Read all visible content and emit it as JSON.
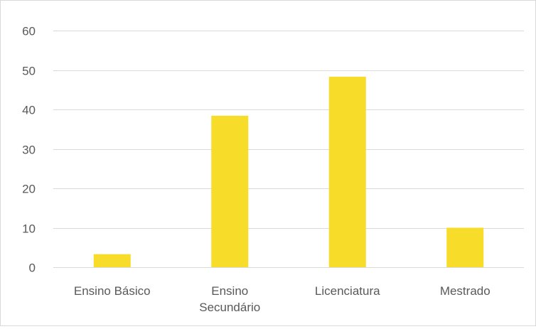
{
  "chart_data": {
    "type": "bar",
    "title": "",
    "xlabel": "",
    "ylabel": "",
    "categories": [
      "Ensino Básico",
      "Ensino Secundário",
      "Licenciatura",
      "Mestrado"
    ],
    "category_label_lines": [
      [
        "Ensino Básico"
      ],
      [
        "Ensino",
        "Secundário"
      ],
      [
        "Licenciatura"
      ],
      [
        "Mestrado"
      ]
    ],
    "values": [
      3.3,
      38.4,
      48.3,
      10
    ],
    "ylim": [
      0,
      60
    ],
    "yticks": [
      0,
      10,
      20,
      30,
      40,
      50,
      60
    ],
    "grid": true,
    "legend": "none",
    "bar_color": "#f7dc2a",
    "grid_color": "#d9d9d9",
    "axis_color": "#d9d9d9"
  }
}
